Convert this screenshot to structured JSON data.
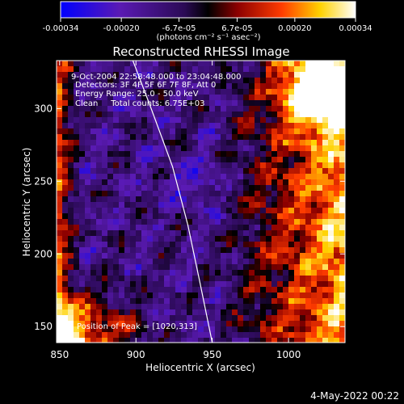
{
  "chart_data": {
    "type": "heatmap",
    "title": "Reconstructed RHESSI Image",
    "colorbar": {
      "tick_labels": [
        "-0.00034",
        "-0.00020",
        "-6.7e-05",
        "6.7e-05",
        "0.00020",
        "0.00034"
      ],
      "tick_values": [
        -0.00034,
        -0.0002,
        -6.7e-05,
        6.7e-05,
        0.0002,
        0.00034
      ],
      "range": [
        -0.00034,
        0.00034
      ],
      "unit_label": "(photons cm⁻² s⁻¹ asec⁻²)",
      "colormap": [
        "#0000ff",
        "#5a1ab4",
        "#2b0a55",
        "#000000",
        "#8c0000",
        "#ff3c00",
        "#ffd200",
        "#ffffff"
      ]
    },
    "annotations": [
      "9-Oct-2004 22:58:48.000 to 23:04:48.000",
      "Detectors: 3F 4F 5F 6F 7F 8F, Att 0",
      "Energy Range: 25.0 - 50.0 keV",
      "Clean     Total counts: 6.75E+03"
    ],
    "peak_label": "Position of Peak = [1020,313]",
    "peak": [
      1020,
      313
    ],
    "xlabel": "Heliocentric X (arcsec)",
    "ylabel": "Heliocentric Y (arcsec)",
    "x_ticks": [
      850,
      900,
      950,
      1000
    ],
    "y_ticks": [
      150,
      200,
      250,
      300
    ],
    "xlim": [
      848,
      1037
    ],
    "ylim": [
      139,
      333
    ],
    "limb_curve": [
      [
        898,
        333
      ],
      [
        910,
        300
      ],
      [
        924,
        260
      ],
      [
        934,
        220
      ],
      [
        942,
        180
      ],
      [
        950,
        139
      ]
    ]
  },
  "footer": {
    "timestamp": "4-May-2022 00:22"
  }
}
